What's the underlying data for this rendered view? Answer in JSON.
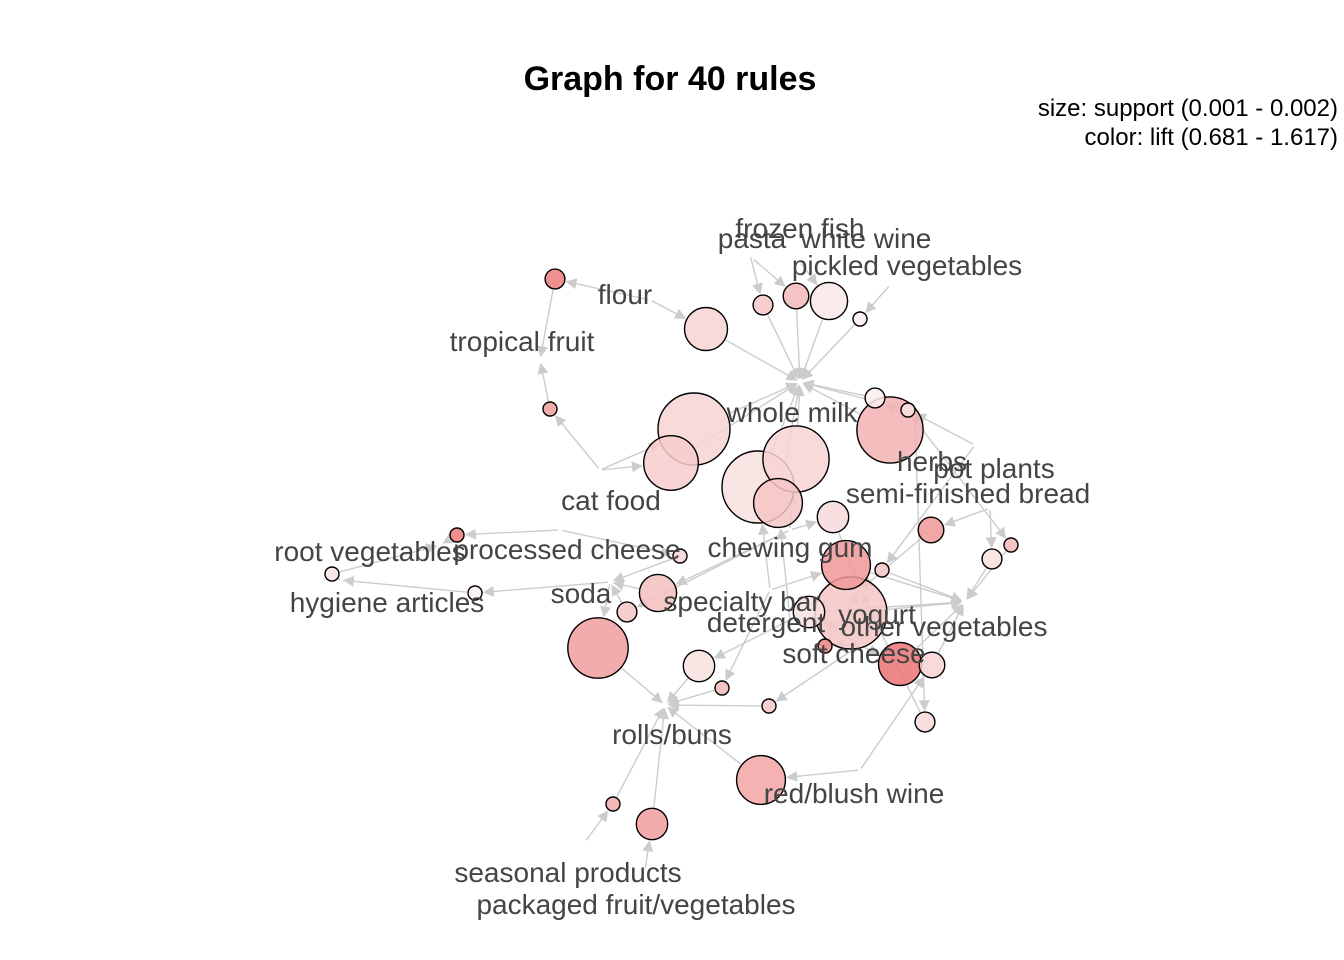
{
  "title": "Graph for 40 rules",
  "legend": {
    "size": "size: support (0.001 - 0.002)",
    "color": "color: lift (0.681 - 1.617)"
  },
  "colors": {
    "lift_low": "#fbf1f1",
    "lift_high": "#ec7272",
    "edge": "#cccccc"
  },
  "items": [
    {
      "id": "frozen fish",
      "label": "frozen fish"
    },
    {
      "id": "pasta",
      "label": "pasta"
    },
    {
      "id": "white wine",
      "label": "white wine"
    },
    {
      "id": "pickled vegetables",
      "label": "pickled vegetables"
    },
    {
      "id": "flour",
      "label": "flour"
    },
    {
      "id": "tropical fruit",
      "label": "tropical fruit"
    },
    {
      "id": "whole milk",
      "label": "whole milk"
    },
    {
      "id": "herbs",
      "label": "herbs"
    },
    {
      "id": "pot plants",
      "label": "pot plants"
    },
    {
      "id": "semi-finished bread",
      "label": "semi-finished bread"
    },
    {
      "id": "cat food",
      "label": "cat food"
    },
    {
      "id": "root vegetables",
      "label": "root vegetables"
    },
    {
      "id": "processed cheese",
      "label": "processed cheese"
    },
    {
      "id": "chewing gum",
      "label": "chewing gum"
    },
    {
      "id": "hygiene articles",
      "label": "hygiene articles"
    },
    {
      "id": "soda",
      "label": "soda"
    },
    {
      "id": "specialty bar",
      "label": "specialty bar"
    },
    {
      "id": "detergent",
      "label": "detergent"
    },
    {
      "id": "yogurt",
      "label": "yogurt"
    },
    {
      "id": "other vegetables",
      "label": "other vegetables"
    },
    {
      "id": "soft cheese",
      "label": "soft cheese"
    },
    {
      "id": "rolls/buns",
      "label": "rolls/buns"
    },
    {
      "id": "red/blush wine",
      "label": "red/blush wine"
    },
    {
      "id": "seasonal products",
      "label": "seasonal products"
    },
    {
      "id": "packaged fruit/vegetables",
      "label": "packaged fruit/vegetables"
    }
  ],
  "rules": [
    {
      "id": "r1",
      "lhs": [
        "frozen fish"
      ],
      "rhs": "whole milk",
      "support": 0.0011,
      "lift": 1.0
    },
    {
      "id": "r2",
      "lhs": [
        "pasta"
      ],
      "rhs": "whole milk",
      "support": 0.0012,
      "lift": 1.1
    },
    {
      "id": "r3",
      "lhs": [
        "white wine"
      ],
      "rhs": "whole milk",
      "support": 0.0014,
      "lift": 0.74
    },
    {
      "id": "r4",
      "lhs": [
        "pickled vegetables"
      ],
      "rhs": "whole milk",
      "support": 0.001,
      "lift": 0.7
    },
    {
      "id": "r5",
      "lhs": [
        "flour"
      ],
      "rhs": "whole milk",
      "support": 0.0015,
      "lift": 0.9
    },
    {
      "id": "r6",
      "lhs": [
        "flour"
      ],
      "rhs": "tropical fruit",
      "support": 0.0011,
      "lift": 1.55
    },
    {
      "id": "r7",
      "lhs": [
        "cat food"
      ],
      "rhs": "tropical fruit",
      "support": 0.001,
      "lift": 1.3
    },
    {
      "id": "r8",
      "lhs": [
        "cat food"
      ],
      "rhs": "whole milk",
      "support": 0.002,
      "lift": 0.9
    },
    {
      "id": "r9",
      "lhs": [
        "cat food"
      ],
      "rhs": "whole milk",
      "support": 0.0017,
      "lift": 0.95
    },
    {
      "id": "r10",
      "lhs": [
        "chewing gum"
      ],
      "rhs": "whole milk",
      "support": 0.0019,
      "lift": 0.9
    },
    {
      "id": "r11",
      "lhs": [
        "specialty bar"
      ],
      "rhs": "whole milk",
      "support": 0.002,
      "lift": 0.8
    },
    {
      "id": "r12",
      "lhs": [
        "detergent"
      ],
      "rhs": "whole milk",
      "support": 0.0016,
      "lift": 1.0
    },
    {
      "id": "r13",
      "lhs": [
        "herbs"
      ],
      "rhs": "whole milk",
      "support": 0.0011,
      "lift": 0.7
    },
    {
      "id": "r14",
      "lhs": [
        "herbs"
      ],
      "rhs": "whole milk",
      "support": 0.0019,
      "lift": 1.15
    },
    {
      "id": "r15",
      "lhs": [
        "pot plants"
      ],
      "rhs": "whole milk",
      "support": 0.001,
      "lift": 0.8
    },
    {
      "id": "r16",
      "lhs": [
        "processed cheese"
      ],
      "rhs": "root vegetables",
      "support": 0.001,
      "lift": 1.55
    },
    {
      "id": "r17",
      "lhs": [
        "hygiene articles"
      ],
      "rhs": "root vegetables",
      "support": 0.001,
      "lift": 0.75
    },
    {
      "id": "r18",
      "lhs": [
        "soda"
      ],
      "rhs": "hygiene articles",
      "support": 0.001,
      "lift": 0.68
    },
    {
      "id": "r19",
      "lhs": [
        "processed cheese"
      ],
      "rhs": "soda",
      "support": 0.001,
      "lift": 0.9
    },
    {
      "id": "r20",
      "lhs": [
        "chewing gum"
      ],
      "rhs": "soda",
      "support": 0.0014,
      "lift": 1.05
    },
    {
      "id": "r21",
      "lhs": [
        "chewing gum"
      ],
      "rhs": "soda",
      "support": 0.0011,
      "lift": 1.0
    },
    {
      "id": "r22",
      "lhs": [
        "soda"
      ],
      "rhs": "rolls/buns",
      "support": 0.0018,
      "lift": 1.3
    },
    {
      "id": "r23",
      "lhs": [
        "detergent"
      ],
      "rhs": "rolls/buns",
      "support": 0.0013,
      "lift": 0.8
    },
    {
      "id": "r24",
      "lhs": [
        "specialty bar"
      ],
      "rhs": "rolls/buns",
      "support": 0.001,
      "lift": 1.1
    },
    {
      "id": "r25",
      "lhs": [
        "soft cheese"
      ],
      "rhs": "rolls/buns",
      "support": 0.001,
      "lift": 1.0
    },
    {
      "id": "r26",
      "lhs": [
        "chewing gum"
      ],
      "rhs": "yogurt",
      "support": 0.0013,
      "lift": 0.85
    },
    {
      "id": "r27",
      "lhs": [
        "semi-finished bread"
      ],
      "rhs": "yogurt",
      "support": 0.0012,
      "lift": 1.35
    },
    {
      "id": "r28",
      "lhs": [
        "specialty bar"
      ],
      "rhs": "other vegetables",
      "support": 0.0016,
      "lift": 1.35
    },
    {
      "id": "r29",
      "lhs": [
        "semi-finished bread"
      ],
      "rhs": "other vegetables",
      "support": 0.0011,
      "lift": 0.8
    },
    {
      "id": "r30",
      "lhs": [
        "herbs"
      ],
      "rhs": "other vegetables",
      "support": 0.001,
      "lift": 1.1
    },
    {
      "id": "r31",
      "lhs": [
        "pot plants"
      ],
      "rhs": "other vegetables",
      "support": 0.001,
      "lift": 1.0
    },
    {
      "id": "r32",
      "lhs": [
        "yogurt"
      ],
      "rhs": "other vegetables",
      "support": 0.002,
      "lift": 1.0
    },
    {
      "id": "r33",
      "lhs": [
        "soft cheese"
      ],
      "rhs": "other vegetables",
      "support": 0.0013,
      "lift": 0.8
    },
    {
      "id": "r34",
      "lhs": [
        "soft cheese"
      ],
      "rhs": "yogurt",
      "support": 0.001,
      "lift": 1.5
    },
    {
      "id": "r35",
      "lhs": [
        "soft cheese"
      ],
      "rhs": "other vegetables",
      "support": 0.0015,
      "lift": 1.6
    },
    {
      "id": "r36",
      "lhs": [
        "red/blush wine"
      ],
      "rhs": "other vegetables",
      "support": 0.0012,
      "lift": 0.9
    },
    {
      "id": "r37",
      "lhs": [
        "red/blush wine"
      ],
      "rhs": "rolls/buns",
      "support": 0.0016,
      "lift": 1.25
    },
    {
      "id": "r38",
      "lhs": [
        "seasonal products"
      ],
      "rhs": "rolls/buns",
      "support": 0.001,
      "lift": 1.2
    },
    {
      "id": "r39",
      "lhs": [
        "packaged fruit/vegetables"
      ],
      "rhs": "rolls/buns",
      "support": 0.0013,
      "lift": 1.3
    },
    {
      "id": "r40",
      "lhs": [
        "herbs"
      ],
      "rhs": "yogurt",
      "support": 0.0011,
      "lift": 0.85
    }
  ]
}
